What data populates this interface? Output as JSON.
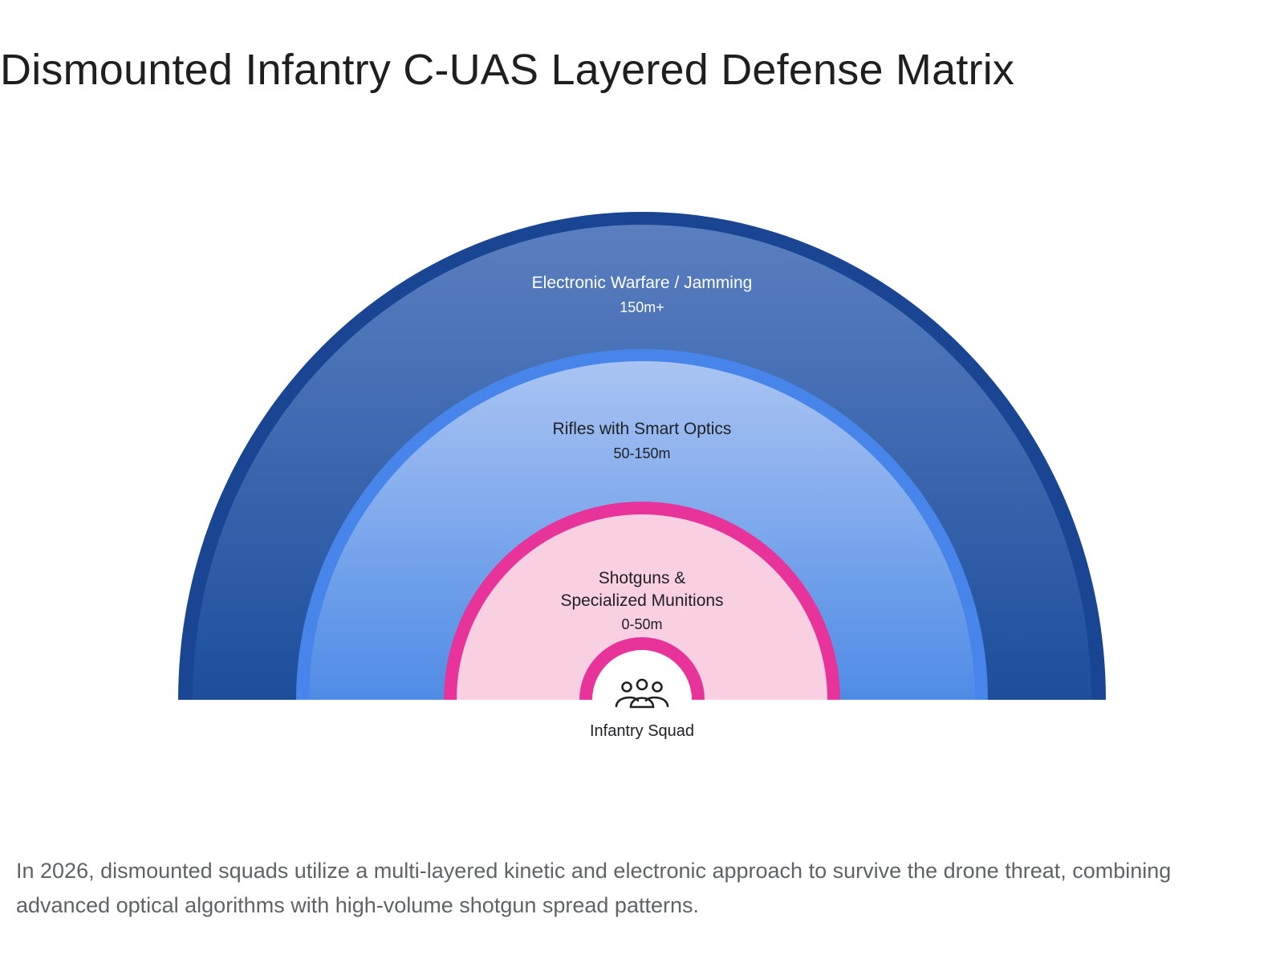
{
  "title": "Dismounted Infantry C-UAS Layered Defense Matrix",
  "layers": [
    {
      "name": "Electronic Warfare / Jamming",
      "range": "150m+",
      "fill_top": "#5a7fc0",
      "fill_bottom": "#1d4e9c",
      "border": "#1a4593"
    },
    {
      "name": "Rifles with Smart Optics",
      "range": "50-150m",
      "fill_top": "#a9c4f2",
      "fill_bottom": "#4f8be6",
      "border": "#4785ea"
    },
    {
      "name_line1": "Shotguns &",
      "name_line2": "Specialized Munitions",
      "range": "0-50m",
      "fill": "#f9cfe2",
      "border": "#e7339a"
    }
  ],
  "center": {
    "label": "Infantry Squad",
    "icon": "group-icon",
    "border": "#e7339a"
  },
  "caption": "In 2026, dismounted squads utilize a multi-layered kinetic and electronic approach to survive the drone threat, combining advanced optical algorithms with high-volume shotgun spread patterns."
}
